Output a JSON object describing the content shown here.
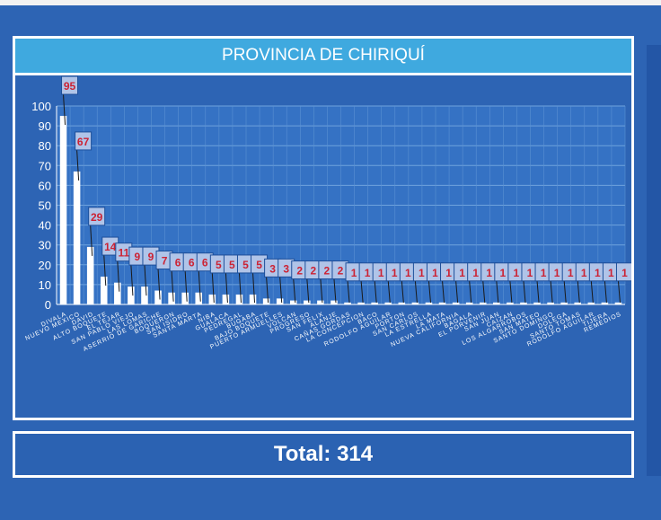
{
  "colors": {
    "background": "#2d64b4",
    "title_bar": "#3fa9df",
    "bar": "#ffffff",
    "label_fill": "#b0c4e8",
    "label_text": "#cc2233"
  },
  "chart_data": {
    "type": "bar",
    "title": "PROVINCIA DE CHIRIQUÍ",
    "ylim": [
      0,
      100
    ],
    "yticks": [
      0,
      10,
      20,
      30,
      40,
      50,
      60,
      70,
      80,
      90,
      100
    ],
    "grid": true,
    "categories": [
      "DIVALA",
      "NUEVO MEXICO",
      "DAVID",
      "ALTO BOQUETE",
      "EL TEJAR",
      "SAN PABLO VIEJO",
      "LAS LOMAS",
      "ASERRIO DE GARICHE",
      "BOQUERON",
      "SAN ISIDRO",
      "SANTA MARTA",
      "NIBA",
      "GUALACA",
      "PEDREGAL",
      "BUGABA",
      "BAJO BOQUETE",
      "PUERTO ARMUELLES",
      "VOLCAN",
      "PROGRESO",
      "SAN FELIX",
      "ALANJE",
      "CAÑAS GORDAS",
      "LA CONCEPCION",
      "BACO",
      "RODOLFO AGUILAR",
      "PORTON",
      "SAN CARLOS",
      "LA ESTRELLA",
      "LA MATA",
      "NUEVA CALIFORNIA",
      "BAGALA",
      "EL PORVENIR",
      "SAN JUAN",
      "CAIZAN",
      "LOS ALGARROBOS",
      "SAN MATEO",
      "SANTO DOMINGO",
      "DOLEGA",
      "SANTO TOMAS",
      "RODOLFO AGUILAR",
      "TIJERA",
      "REMEDIOS"
    ],
    "values": [
      95,
      67,
      29,
      14,
      11,
      9,
      9,
      7,
      6,
      6,
      6,
      5,
      5,
      5,
      5,
      3,
      3,
      2,
      2,
      2,
      2,
      1,
      1,
      1,
      1,
      1,
      1,
      1,
      1,
      1,
      1,
      1,
      1,
      1,
      1,
      1,
      1,
      1,
      1,
      1,
      1,
      1
    ]
  },
  "total_label": "Total: 314"
}
